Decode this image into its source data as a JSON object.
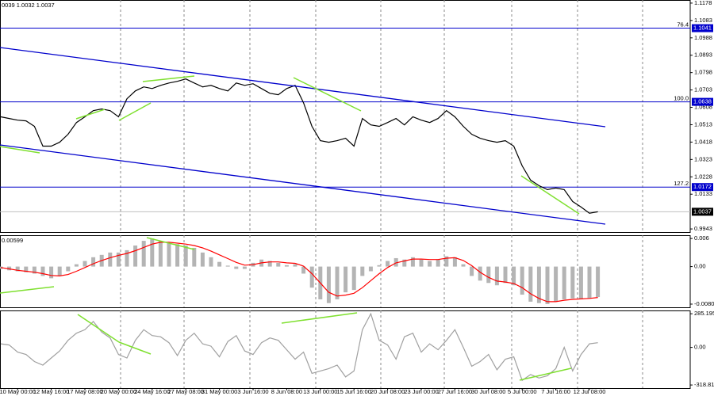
{
  "chart_data": [
    {
      "type": "line",
      "header": "0039 1.0032 1.0037",
      "categories": [
        null,
        null,
        "10 May 00:00",
        null,
        null,
        null,
        "12 May 16:00",
        null,
        null,
        null,
        "17 May 08:00",
        null,
        null,
        null,
        "20 May 00:00",
        null,
        null,
        null,
        "24 May 16:00",
        null,
        null,
        null,
        "27 May 08:00",
        null,
        null,
        null,
        "31 May 00:00",
        null,
        null,
        null,
        "3 Jun 16:00",
        null,
        null,
        null,
        "8 Jun 08:00",
        null,
        null,
        null,
        "13 Jun 00:00",
        null,
        null,
        null,
        "15 Jun 16:00",
        null,
        null,
        null,
        "20 Jun 08:00",
        null,
        null,
        null,
        "23 Jun 00:00",
        null,
        null,
        null,
        "27 Jun 16:00",
        null,
        null,
        null,
        "30 Jun 08:00",
        null,
        null,
        null,
        "5 Jul 00:00",
        null,
        null,
        null,
        "7 Jul 16:00",
        null,
        null,
        null,
        "12 Jul 08:00",
        null
      ],
      "series": [
        {
          "color": "#000000",
          "values": [
            1.0556,
            1.0547,
            1.0538,
            1.0534,
            1.0504,
            1.0396,
            1.0396,
            1.0417,
            1.0461,
            1.0525,
            1.0556,
            1.059,
            1.0599,
            1.059,
            1.0556,
            1.0655,
            1.0698,
            1.072,
            1.0711,
            1.0728,
            1.0741,
            1.075,
            1.0763,
            1.0741,
            1.072,
            1.0728,
            1.0711,
            1.0698,
            1.0741,
            1.0728,
            1.0737,
            1.0711,
            1.0685,
            1.0677,
            1.0711,
            1.0728,
            1.0633,
            1.0504,
            1.0426,
            1.0417,
            1.0426,
            1.0439,
            1.0396,
            1.0547,
            1.0512,
            1.0504,
            1.0525,
            1.0547,
            1.0512,
            1.0556,
            1.0538,
            1.0525,
            1.0547,
            1.059,
            1.0556,
            1.0504,
            1.0461,
            1.0439,
            1.0426,
            1.0417,
            1.0426,
            1.0396,
            1.0288,
            1.021,
            1.018,
            1.0158,
            1.0167,
            1.0158,
            1.0093,
            1.0063,
            1.0029,
            1.0037
          ]
        }
      ],
      "levels": [
        {
          "value": 1.1041,
          "label": "76.4"
        },
        {
          "value": 1.0638,
          "label": "100.0"
        },
        {
          "value": 1.0172,
          "label": "127.2"
        }
      ],
      "current": 1.0037,
      "ylim": [
        0.9926,
        1.1195
      ],
      "yticks": [
        0.9943,
        1.0133,
        1.0228,
        1.0323,
        1.0418,
        1.0513,
        1.0608,
        1.0703,
        1.0798,
        1.0893,
        1.0988,
        1.1083,
        1.1178
      ]
    },
    {
      "type": "bar",
      "header": "0.00599",
      "series": [
        {
          "color": "#b4b4b4",
          "values": [
            -0.0005,
            -0.0008,
            -0.001,
            -0.0012,
            -0.0015,
            -0.002,
            -0.0025,
            -0.002,
            -0.001,
            0.0005,
            0.0012,
            0.002,
            0.0025,
            0.003,
            0.003,
            0.0035,
            0.0045,
            0.0055,
            0.006,
            0.0055,
            0.005,
            0.0048,
            0.0045,
            0.004,
            0.003,
            0.002,
            0.001,
            0.0002,
            -0.0005,
            -0.0005,
            0.0008,
            0.0015,
            0.0012,
            0.0008,
            0.0003,
            0.0005,
            -0.0015,
            -0.0045,
            -0.007,
            -0.0078,
            -0.007,
            -0.0055,
            -0.005,
            -0.002,
            -0.001,
            0.0003,
            0.0012,
            0.0018,
            0.0015,
            0.002,
            0.0015,
            0.0012,
            0.0015,
            0.0022,
            0.002,
            0.0005,
            -0.002,
            -0.003,
            -0.0035,
            -0.004,
            -0.0035,
            -0.004,
            -0.006,
            -0.0075,
            -0.0078,
            -0.008,
            -0.0075,
            -0.007,
            -0.0068,
            -0.007,
            -0.0068,
            -0.0065
          ]
        },
        {
          "color": "#ff0000",
          "type": "line",
          "values": [
            -0.0002,
            -0.0005,
            -0.0008,
            -0.001,
            -0.0012,
            -0.0015,
            -0.0019,
            -0.002,
            -0.0017,
            -0.001,
            -0.0002,
            0.0006,
            0.0013,
            0.0019,
            0.0024,
            0.0028,
            0.0034,
            0.0041,
            0.0048,
            0.0052,
            0.0052,
            0.005,
            0.0048,
            0.0045,
            0.004,
            0.0033,
            0.0025,
            0.0017,
            0.0009,
            0.0003,
            0.0004,
            0.0008,
            0.001,
            0.001,
            0.0008,
            0.0007,
            0.0001,
            -0.0015,
            -0.0035,
            -0.0055,
            -0.0063,
            -0.0061,
            -0.0057,
            -0.0045,
            -0.003,
            -0.0015,
            -0.0002,
            0.0008,
            0.0012,
            0.0016,
            0.0016,
            0.0015,
            0.0015,
            0.0018,
            0.0019,
            0.0013,
            0.0002,
            -0.0012,
            -0.0023,
            -0.0031,
            -0.0033,
            -0.0036,
            -0.0045,
            -0.0058,
            -0.0068,
            -0.0075,
            -0.0075,
            -0.0072,
            -0.007,
            -0.0069,
            -0.0068,
            -0.0066
          ]
        }
      ],
      "ylim": [
        -0.0087,
        0.0067
      ],
      "yticks": [
        0.006,
        {
          "value": 0,
          "label": "0.00"
        },
        -0.00802
      ]
    },
    {
      "type": "line",
      "series": [
        {
          "color": "#a0a0a0",
          "values": [
            30,
            20,
            -40,
            -60,
            -120,
            -150,
            -90,
            -30,
            60,
            120,
            150,
            220,
            130,
            80,
            -60,
            -90,
            60,
            150,
            100,
            90,
            40,
            -70,
            60,
            120,
            30,
            10,
            -80,
            50,
            100,
            -30,
            -60,
            40,
            80,
            60,
            -20,
            -100,
            -40,
            -220,
            -200,
            -180,
            -150,
            -250,
            -200,
            150,
            285,
            60,
            20,
            -100,
            90,
            120,
            -40,
            30,
            -20,
            60,
            150,
            0,
            -160,
            -120,
            -60,
            -190,
            -100,
            -80,
            -280,
            -230,
            -260,
            -240,
            -180,
            0,
            -200,
            -60,
            30,
            40
          ]
        }
      ],
      "ylim": [
        -345,
        313
      ],
      "yticks": [
        {
          "value": 285.1954,
          "label": "285.1954"
        },
        {
          "value": 0,
          "label": "0.00"
        },
        -318.8114
      ]
    }
  ]
}
